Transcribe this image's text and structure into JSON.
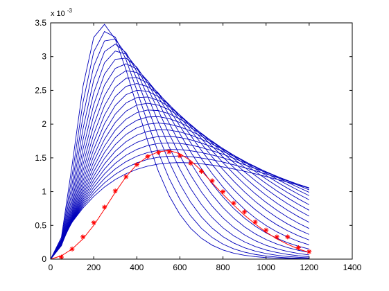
{
  "chart_data": {
    "type": "line",
    "title": "",
    "xlabel": "",
    "ylabel": "",
    "xlim": [
      0,
      1400
    ],
    "ylim": [
      0,
      0.0035
    ],
    "grid": false,
    "legend": "none",
    "y_exponent_label": "x 10",
    "y_exponent_power": "-3",
    "x_ticks": [
      0,
      200,
      400,
      600,
      800,
      1000,
      1200,
      1400
    ],
    "x_tick_labels": [
      "0",
      "200",
      "400",
      "600",
      "800",
      "1000",
      "1200",
      "1400"
    ],
    "y_ticks": [
      0,
      0.0005,
      0.001,
      0.0015,
      0.002,
      0.0025,
      0.003,
      0.0035
    ],
    "y_tick_labels": [
      "0",
      "0.5",
      "1",
      "1.5",
      "2",
      "2.5",
      "3",
      "3.5"
    ],
    "curve_color": "#0000bb",
    "fit_color": "#ff0000",
    "marker_color": "#ff0000",
    "curve_family": {
      "x": [
        0,
        50,
        100,
        150,
        200,
        250,
        300,
        350,
        400,
        450,
        500,
        550,
        600,
        650,
        700,
        750,
        800,
        850,
        900,
        950,
        1000,
        1050,
        1100,
        1150,
        1200
      ],
      "peak_x_range": [
        245,
        600
      ],
      "peak_y_range": [
        0.00348,
        0.00143
      ],
      "count": 22
    },
    "fit_curve": {
      "x": [
        0,
        50,
        100,
        150,
        200,
        250,
        300,
        350,
        400,
        450,
        500,
        550,
        600,
        650,
        700,
        750,
        800,
        850,
        900,
        950,
        1000,
        1050,
        1100,
        1150,
        1200
      ],
      "y": [
        0,
        5e-05,
        0.00015,
        0.0003,
        0.0005,
        0.00074,
        0.00099,
        0.00122,
        0.0014,
        0.00152,
        0.00159,
        0.00161,
        0.00156,
        0.00146,
        0.00131,
        0.00113,
        0.00096,
        0.0008,
        0.00065,
        0.00052,
        0.0004,
        0.0003,
        0.00022,
        0.00015,
        0.0001
      ]
    },
    "measured_points": {
      "x": [
        50,
        100,
        150,
        200,
        250,
        300,
        350,
        400,
        450,
        500,
        550,
        600,
        650,
        700,
        750,
        800,
        850,
        900,
        950,
        1000,
        1050,
        1100,
        1150,
        1200
      ],
      "y": [
        3e-05,
        0.00015,
        0.00033,
        0.00054,
        0.00077,
        0.00101,
        0.00122,
        0.0014,
        0.00152,
        0.00158,
        0.00159,
        0.00153,
        0.00142,
        0.0013,
        0.00116,
        0.001,
        0.00083,
        0.0007,
        0.00055,
        0.00043,
        0.00033,
        0.00033,
        0.00017,
        0.00011
      ]
    }
  }
}
